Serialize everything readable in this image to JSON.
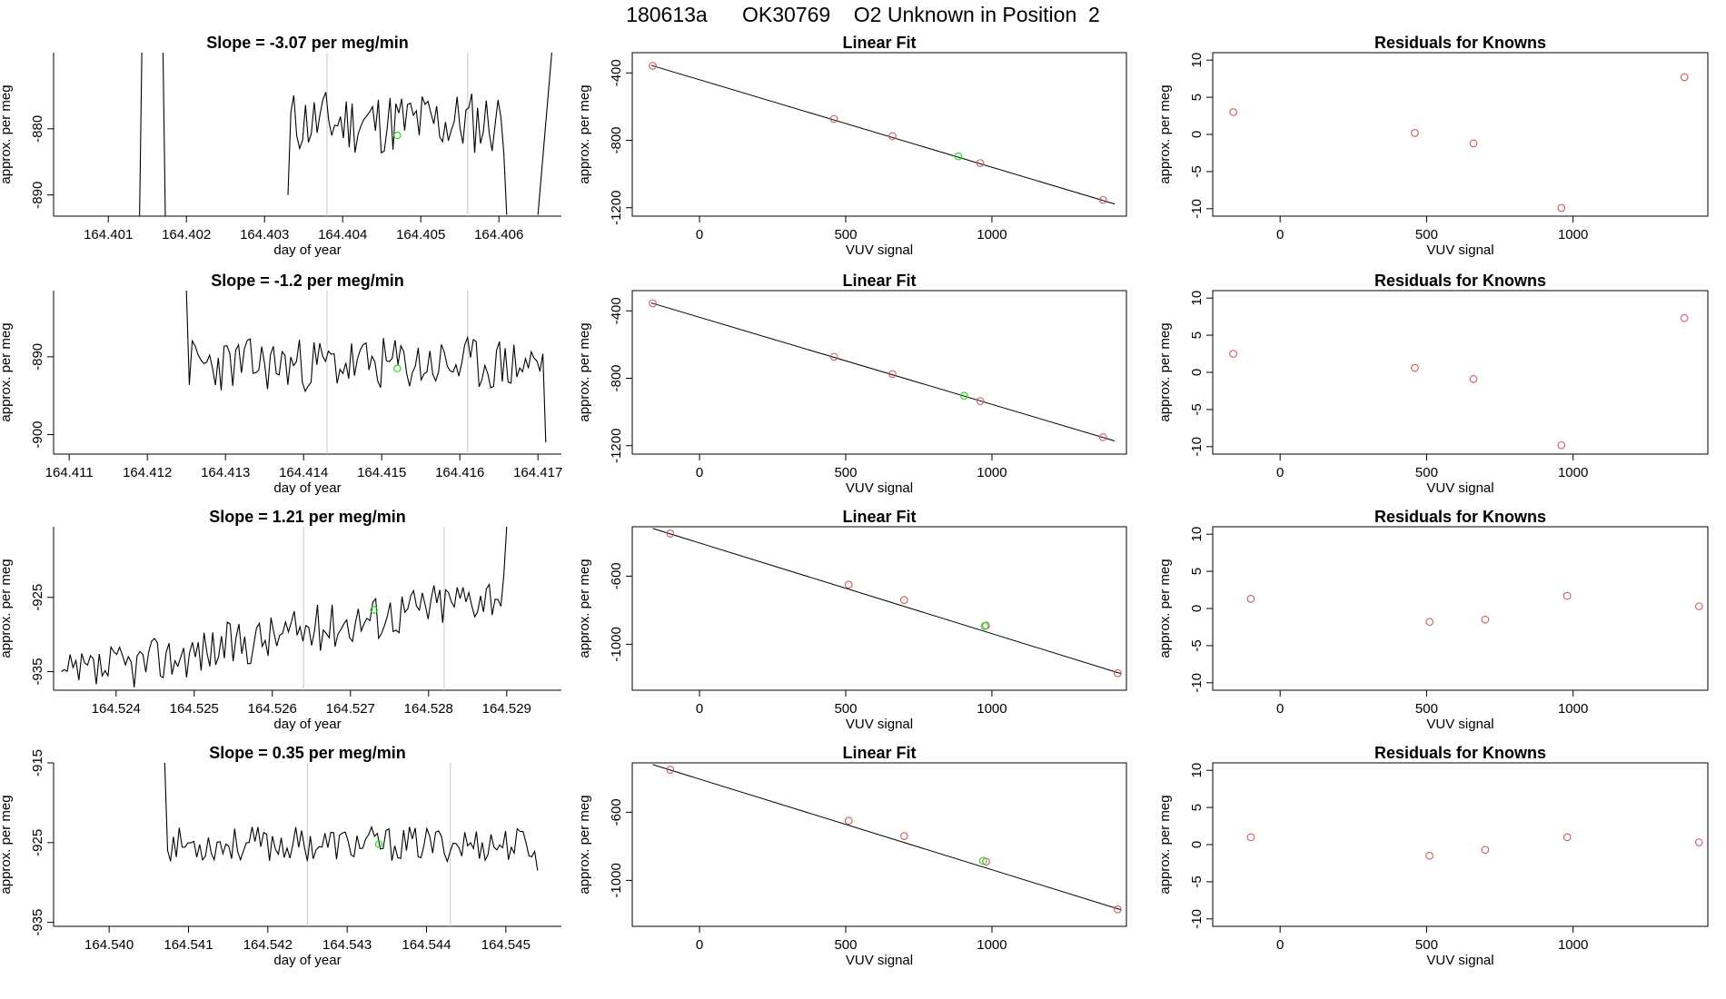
{
  "title": "180613a      OK30769    O2 Unknown in Position  2",
  "colors": {
    "axis": "#000000",
    "line": "#000000",
    "grid": "#c8c8c8",
    "known": "#cd5c5c",
    "unknown": "#22dd22",
    "fit": "#000000"
  },
  "chart_data": [
    {
      "type": "line",
      "row": 1,
      "col": "timeseries",
      "title": "Slope =  -3.07  per meg/min",
      "xlabel": "day of year",
      "ylabel": "approx. per meg",
      "xlim": [
        164.4003,
        164.4068
      ],
      "ylim": [
        -893.2,
        -868.5
      ],
      "xticks": [
        164.401,
        164.402,
        164.403,
        164.404,
        164.405,
        164.406
      ],
      "xtick_labels": [
        "164.401",
        "164.402",
        "164.403",
        "164.404",
        "164.405",
        "164.406"
      ],
      "yticks": [
        -890,
        -880
      ],
      "ytick_labels": [
        "-890",
        "-880"
      ],
      "vlines": [
        164.4038,
        164.4056
      ],
      "point": [
        164.4047,
        -881
      ],
      "segments": [
        {
          "start": 164.4014,
          "end": 164.40143,
          "from": -893.5,
          "to": -868
        },
        {
          "start": 164.4017,
          "end": 164.40173,
          "from": -868,
          "to": -893.5
        },
        {
          "start": 164.4033,
          "end": 164.4061,
          "from": -890,
          "to": -893,
          "level": -879,
          "amp": 5,
          "seed": 11
        },
        {
          "start": 164.4065,
          "end": 164.40668,
          "from": -893,
          "to": -868
        }
      ]
    },
    {
      "type": "scatter",
      "row": 1,
      "col": "fit",
      "title": "Linear Fit",
      "xlabel": "VUV signal",
      "ylabel": "approx. per meg",
      "xlim": [
        -230,
        1460
      ],
      "ylim": [
        -1250,
        -280
      ],
      "xticks": [
        0,
        500,
        1000
      ],
      "xtick_labels": [
        "0",
        "500",
        "1000"
      ],
      "yticks": [
        -1200,
        -800,
        -400
      ],
      "ytick_labels": [
        "-1200",
        "-800",
        "-400"
      ],
      "knowns": [
        [
          -160,
          -358
        ],
        [
          460,
          -673
        ],
        [
          660,
          -775
        ],
        [
          960,
          -935
        ],
        [
          1380,
          -1154
        ]
      ],
      "unknown": [
        885,
        -895
      ],
      "fit": [
        [
          -165,
          -355
        ],
        [
          1420,
          -1178
        ]
      ]
    },
    {
      "type": "scatter",
      "row": 1,
      "col": "residuals",
      "title": "Residuals for Knowns",
      "xlabel": "VUV signal",
      "ylabel": "approx. per meg",
      "xlim": [
        -230,
        1460
      ],
      "ylim": [
        -11,
        11
      ],
      "xticks": [
        0,
        500,
        1000
      ],
      "xtick_labels": [
        "0",
        "500",
        "1000"
      ],
      "yticks": [
        -10,
        -5,
        0,
        5,
        10
      ],
      "ytick_labels": [
        "-10",
        "-5",
        "0",
        "5",
        "10"
      ],
      "knowns": [
        [
          -160,
          3
        ],
        [
          460,
          0.2
        ],
        [
          660,
          -1.2
        ],
        [
          960,
          -9.9
        ],
        [
          1380,
          7.7
        ]
      ]
    },
    {
      "type": "line",
      "row": 2,
      "col": "timeseries",
      "title": "Slope =  -1.2  per meg/min",
      "xlabel": "day of year",
      "ylabel": "approx. per meg",
      "xlim": [
        164.4108,
        164.4173
      ],
      "ylim": [
        -902.5,
        -881.5
      ],
      "xticks": [
        164.411,
        164.412,
        164.413,
        164.414,
        164.415,
        164.416,
        164.417
      ],
      "xtick_labels": [
        "164.411",
        "164.412",
        "164.413",
        "164.414",
        "164.415",
        "164.416",
        "164.417"
      ],
      "yticks": [
        -900,
        -890
      ],
      "ytick_labels": [
        "-900",
        "-890"
      ],
      "vlines": [
        164.4143,
        164.4161
      ],
      "point": [
        164.4152,
        -891.5
      ],
      "segments": [
        {
          "start": 164.4125,
          "end": 164.4171,
          "from": -881.5,
          "to": -901,
          "level": -891,
          "amp": 3.5,
          "seed": 23
        }
      ]
    },
    {
      "type": "scatter",
      "row": 2,
      "col": "fit",
      "title": "Linear Fit",
      "xlabel": "VUV signal",
      "ylabel": "approx. per meg",
      "xlim": [
        -230,
        1460
      ],
      "ylim": [
        -1250,
        -280
      ],
      "xticks": [
        0,
        500,
        1000
      ],
      "xtick_labels": [
        "0",
        "500",
        "1000"
      ],
      "yticks": [
        -1200,
        -800,
        -400
      ],
      "ytick_labels": [
        "-1200",
        "-800",
        "-400"
      ],
      "knowns": [
        [
          -160,
          -355
        ],
        [
          460,
          -673
        ],
        [
          660,
          -775
        ],
        [
          960,
          -935
        ],
        [
          1380,
          -1150
        ]
      ],
      "unknown": [
        905,
        -904
      ],
      "fit": [
        [
          -165,
          -353
        ],
        [
          1420,
          -1172
        ]
      ]
    },
    {
      "type": "scatter",
      "row": 2,
      "col": "residuals",
      "title": "Residuals for Knowns",
      "xlabel": "VUV signal",
      "ylabel": "approx. per meg",
      "xlim": [
        -230,
        1460
      ],
      "ylim": [
        -11,
        11
      ],
      "xticks": [
        0,
        500,
        1000
      ],
      "xtick_labels": [
        "0",
        "500",
        "1000"
      ],
      "yticks": [
        -10,
        -5,
        0,
        5,
        10
      ],
      "ytick_labels": [
        "-10",
        "-5",
        "0",
        "5",
        "10"
      ],
      "knowns": [
        [
          -160,
          2.5
        ],
        [
          460,
          0.6
        ],
        [
          660,
          -0.9
        ],
        [
          960,
          -9.8
        ],
        [
          1380,
          7.3
        ]
      ]
    },
    {
      "type": "line",
      "row": 3,
      "col": "timeseries",
      "title": "Slope =  1.21  per meg/min",
      "xlabel": "day of year",
      "ylabel": "approx. per meg",
      "xlim": [
        164.5232,
        164.5297
      ],
      "ylim": [
        -937.5,
        -915.5
      ],
      "xticks": [
        164.524,
        164.525,
        164.526,
        164.527,
        164.528,
        164.529
      ],
      "xtick_labels": [
        "164.524",
        "164.525",
        "164.526",
        "164.527",
        "164.528",
        "164.529"
      ],
      "yticks": [
        -935,
        -925
      ],
      "ytick_labels": [
        "-935",
        "-925"
      ],
      "vlines": [
        164.5264,
        164.5282
      ],
      "point": [
        164.5273,
        -926.7
      ],
      "segments": [
        {
          "start": 164.5233,
          "end": 164.529,
          "from": -935,
          "to": -915.5,
          "level": -930,
          "slope": 12,
          "amp": 3.2,
          "seed": 37
        }
      ]
    },
    {
      "type": "scatter",
      "row": 3,
      "col": "fit",
      "title": "Linear Fit",
      "xlabel": "VUV signal",
      "ylabel": "approx. per meg",
      "xlim": [
        -230,
        1460
      ],
      "ylim": [
        -1270,
        -310
      ],
      "xticks": [
        0,
        500,
        1000
      ],
      "xtick_labels": [
        "0",
        "500",
        "1000"
      ],
      "yticks": [
        -1000,
        -600
      ],
      "ytick_labels": [
        "-1000",
        "-600"
      ],
      "knowns": [
        [
          -100,
          -350
        ],
        [
          510,
          -650
        ],
        [
          700,
          -740
        ],
        [
          980,
          -890
        ],
        [
          1430,
          -1170
        ]
      ],
      "unknown": [
        975,
        -893
      ],
      "fit": [
        [
          -160,
          -320
        ],
        [
          1440,
          -1172
        ]
      ]
    },
    {
      "type": "scatter",
      "row": 3,
      "col": "residuals",
      "title": "Residuals for Knowns",
      "xlabel": "VUV signal",
      "ylabel": "approx. per meg",
      "xlim": [
        -230,
        1460
      ],
      "ylim": [
        -11,
        11
      ],
      "xticks": [
        0,
        500,
        1000
      ],
      "xtick_labels": [
        "0",
        "500",
        "1000"
      ],
      "yticks": [
        -10,
        -5,
        0,
        5,
        10
      ],
      "ytick_labels": [
        "-10",
        "-5",
        "0",
        "5",
        "10"
      ],
      "knowns": [
        [
          -100,
          1.3
        ],
        [
          510,
          -1.8
        ],
        [
          700,
          -1.5
        ],
        [
          980,
          1.7
        ],
        [
          1430,
          0.3
        ]
      ]
    },
    {
      "type": "line",
      "row": 4,
      "col": "timeseries",
      "title": "Slope =  0.35  per meg/min",
      "xlabel": "day of year",
      "ylabel": "approx. per meg",
      "xlim": [
        164.5393,
        164.5457
      ],
      "ylim": [
        -935.5,
        -915
      ],
      "xticks": [
        164.54,
        164.541,
        164.542,
        164.543,
        164.544,
        164.545
      ],
      "xtick_labels": [
        "164.540",
        "164.541",
        "164.542",
        "164.543",
        "164.544",
        "164.545"
      ],
      "yticks": [
        -935,
        -925,
        -915
      ],
      "ytick_labels": [
        "-935",
        "-925",
        "-915"
      ],
      "vlines": [
        164.5425,
        164.5443
      ],
      "point": [
        164.5434,
        -925.2
      ],
      "segments": [
        {
          "start": 164.5407,
          "end": 164.5454,
          "from": -915,
          "to": -928.5,
          "level": -925.2,
          "amp": 2.2,
          "seed": 53
        }
      ]
    },
    {
      "type": "scatter",
      "row": 4,
      "col": "fit",
      "title": "Linear Fit",
      "xlabel": "VUV signal",
      "ylabel": "approx. per meg",
      "xlim": [
        -230,
        1460
      ],
      "ylim": [
        -1270,
        -310
      ],
      "xticks": [
        0,
        500,
        1000
      ],
      "xtick_labels": [
        "0",
        "500",
        "1000"
      ],
      "yticks": [
        -1000,
        -600
      ],
      "ytick_labels": [
        "-1000",
        "-600"
      ],
      "knowns": [
        [
          -100,
          -350
        ],
        [
          510,
          -650
        ],
        [
          700,
          -740
        ],
        [
          980,
          -890
        ],
        [
          1430,
          -1170
        ]
      ],
      "unknown": [
        970,
        -885
      ],
      "fit": [
        [
          -160,
          -320
        ],
        [
          1440,
          -1172
        ]
      ]
    },
    {
      "type": "scatter",
      "row": 4,
      "col": "residuals",
      "title": "Residuals for Knowns",
      "xlabel": "VUV signal",
      "ylabel": "approx. per meg",
      "xlim": [
        -230,
        1460
      ],
      "ylim": [
        -11,
        11
      ],
      "xticks": [
        0,
        500,
        1000
      ],
      "xtick_labels": [
        "0",
        "500",
        "1000"
      ],
      "yticks": [
        -10,
        -5,
        0,
        5,
        10
      ],
      "ytick_labels": [
        "-10",
        "-5",
        "0",
        "5",
        "10"
      ],
      "knowns": [
        [
          -100,
          1
        ],
        [
          510,
          -1.5
        ],
        [
          700,
          -0.7
        ],
        [
          980,
          1
        ],
        [
          1430,
          0.3
        ]
      ]
    }
  ]
}
